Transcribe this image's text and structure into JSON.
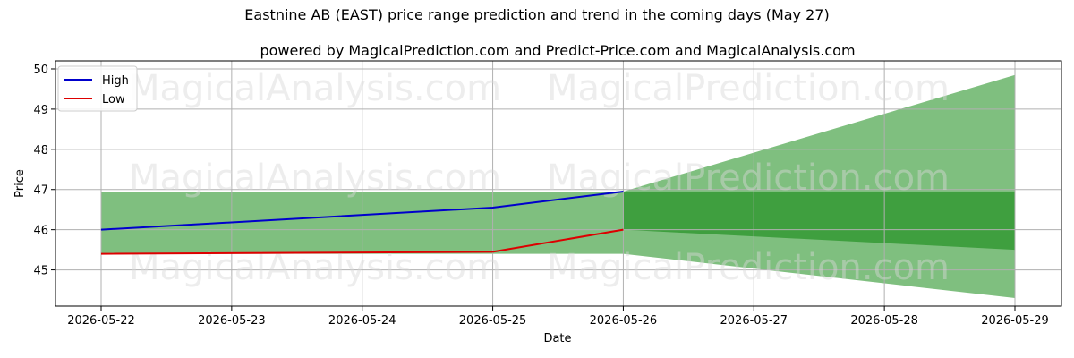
{
  "chart_data": {
    "type": "line",
    "title": "Eastnine AB (EAST) price range prediction and trend in the coming days (May 27)",
    "subtitle": "powered by MagicalPrediction.com and Predict-Price.com and MagicalAnalysis.com",
    "xlabel": "Date",
    "ylabel": "Price",
    "x": [
      "2026-05-22",
      "2026-05-23",
      "2026-05-24",
      "2026-05-25",
      "2026-05-26",
      "2026-05-27",
      "2026-05-28",
      "2026-05-29"
    ],
    "ylim": [
      44.1,
      50.2
    ],
    "yticks": [
      45,
      46,
      47,
      48,
      49,
      50
    ],
    "grid": true,
    "legend_position": "top-left",
    "series": [
      {
        "name": "High",
        "color": "#0000cc",
        "x": [
          "2026-05-22",
          "2026-05-25",
          "2026-05-26"
        ],
        "values": [
          46.0,
          46.55,
          46.95
        ]
      },
      {
        "name": "Low",
        "color": "#dd0000",
        "x": [
          "2026-05-22",
          "2026-05-25",
          "2026-05-26"
        ],
        "values": [
          45.4,
          45.45,
          46.0
        ]
      }
    ],
    "bands": [
      {
        "color": "#7fbf7f",
        "x": [
          "2026-05-22",
          "2026-05-26"
        ],
        "upper": [
          46.95,
          46.95
        ],
        "lower": [
          45.4,
          45.4
        ]
      },
      {
        "color": "#7fbf7f",
        "x": [
          "2026-05-26",
          "2026-05-29"
        ],
        "upper": [
          46.95,
          49.85
        ],
        "lower": [
          45.4,
          44.3
        ]
      },
      {
        "color": "#3f9f3f",
        "x": [
          "2026-05-26",
          "2026-05-29"
        ],
        "upper": [
          46.95,
          46.95
        ],
        "lower": [
          46.0,
          45.5
        ]
      }
    ]
  },
  "watermarks": [
    "MagicalAnalysis.com",
    "MagicalPrediction.com",
    "MagicalAnalysis.com",
    "MagicalPrediction.com",
    "MagicalAnalysis.com",
    "MagicalPrediction.com"
  ]
}
